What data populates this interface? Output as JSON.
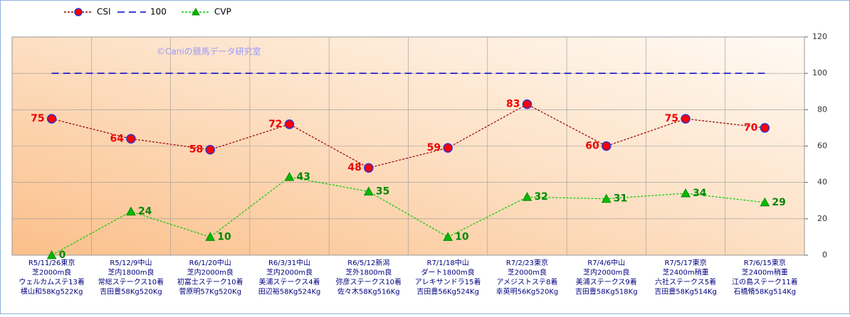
{
  "chart_data": {
    "type": "line",
    "annotation": "©Caniの競馬データ研究室",
    "categories": [
      [
        "R5/11/26東京",
        "芝2000m良",
        "ウェルカムステ13着",
        "横山和58Kg522Kg"
      ],
      [
        "R5/12/9中山",
        "芝内1800m良",
        "常総ステークス10着",
        "吉田豊58Kg520Kg"
      ],
      [
        "R6/1/20中山",
        "芝内2000m良",
        "初富士ステーク10着",
        "菅原明57Kg520Kg"
      ],
      [
        "R6/3/31中山",
        "芝内2000m良",
        "美浦ステークス4着",
        "田辺裕58Kg524Kg"
      ],
      [
        "R6/5/12新潟",
        "芝外1800m良",
        "弥彦ステークス10着",
        "佐々木58Kg516Kg"
      ],
      [
        "R7/1/18中山",
        "ダート1800m良",
        "アレキサンドラ15着",
        "吉田豊56Kg524Kg"
      ],
      [
        "R7/2/23東京",
        "芝2000m良",
        "アメジストステ8着",
        "幸英明56Kg520Kg"
      ],
      [
        "R7/4/6中山",
        "芝内2000m良",
        "美浦ステークス9着",
        "吉田豊58Kg518Kg"
      ],
      [
        "R7/5/17東京",
        "芝2400m稍重",
        "六社ステークス5着",
        "吉田豊58Kg514Kg"
      ],
      [
        "R7/6/15東京",
        "芝2400m稍重",
        "江の島ステーク11着",
        "石橋脩58Kg514Kg"
      ]
    ],
    "series": [
      {
        "name": "CSI",
        "color": "#990000",
        "marker_color": "#ff0000",
        "values": [
          75,
          64,
          58,
          72,
          48,
          59,
          83,
          60,
          75,
          70
        ]
      },
      {
        "name": "100",
        "color": "#0000cc",
        "values": [
          100,
          100,
          100,
          100,
          100,
          100,
          100,
          100,
          100,
          100
        ]
      },
      {
        "name": "CVP",
        "color": "#00cc00",
        "marker_color": "#00bb00",
        "values": [
          0,
          24,
          10,
          43,
          35,
          10,
          32,
          31,
          34,
          29
        ]
      }
    ],
    "ylim": [
      0,
      120
    ],
    "yticks": [
      0,
      20,
      40,
      60,
      80,
      100,
      120
    ],
    "grid": true
  }
}
